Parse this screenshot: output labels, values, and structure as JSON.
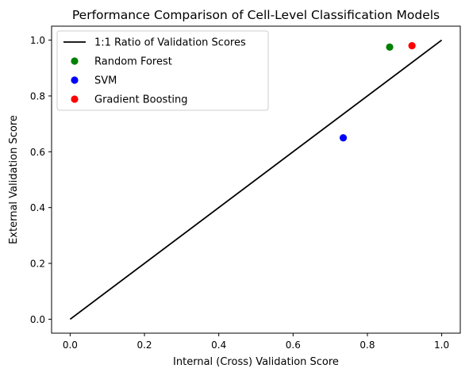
{
  "chart_data": {
    "type": "scatter",
    "title": "Performance Comparison of Cell-Level Classification Models",
    "xlabel": "Internal (Cross) Validation Score",
    "ylabel": "External Validation Score",
    "xlim": [
      -0.05,
      1.05
    ],
    "ylim": [
      -0.05,
      1.05
    ],
    "xticks": [
      0.0,
      0.2,
      0.4,
      0.6,
      0.8,
      1.0
    ],
    "yticks": [
      0.0,
      0.2,
      0.4,
      0.6,
      0.8,
      1.0
    ],
    "xtick_labels": [
      "0.0",
      "0.2",
      "0.4",
      "0.6",
      "0.8",
      "1.0"
    ],
    "ytick_labels": [
      "0.0",
      "0.2",
      "0.4",
      "0.6",
      "0.8",
      "1.0"
    ],
    "grid": false,
    "legend_position": "top-left",
    "reference_line": {
      "name": "1:1 Ratio of Validation Scores",
      "x": [
        0.0,
        1.0
      ],
      "y": [
        0.0,
        1.0
      ],
      "color": "#000000"
    },
    "series": [
      {
        "name": "Random Forest",
        "x": [
          0.86
        ],
        "y": [
          0.975
        ],
        "color": "#008000"
      },
      {
        "name": "SVM",
        "x": [
          0.735
        ],
        "y": [
          0.65
        ],
        "color": "#0000ff"
      },
      {
        "name": "Gradient Boosting",
        "x": [
          0.92
        ],
        "y": [
          0.98
        ],
        "color": "#ff0000"
      }
    ]
  }
}
